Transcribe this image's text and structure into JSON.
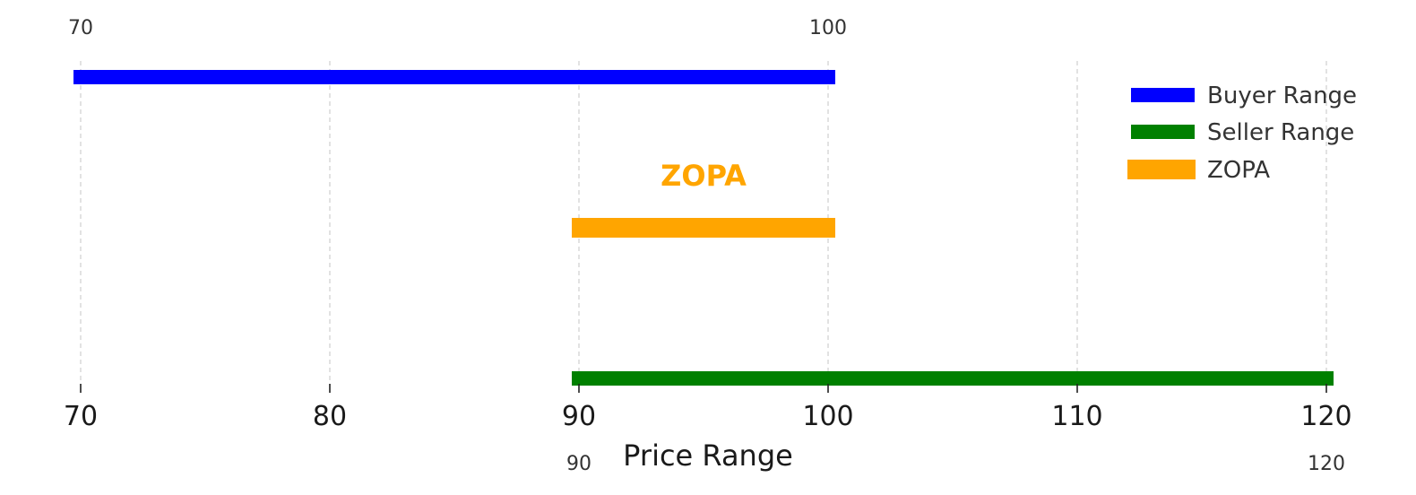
{
  "chart_data": {
    "type": "bar",
    "orientation": "horizontal-range",
    "title": "",
    "xlabel": "Price Range",
    "ylabel": "",
    "xlim": [
      70,
      120
    ],
    "x_ticks": [
      70,
      80,
      90,
      100,
      110,
      120
    ],
    "x_tick_labels": [
      "70",
      "80",
      "90",
      "100",
      "110",
      "120"
    ],
    "grid": "vertical dashed",
    "legend_position": "top-right",
    "series": [
      {
        "name": "Buyer Range",
        "start": 70,
        "end": 100,
        "color": "#0000ff",
        "row": "top"
      },
      {
        "name": "ZOPA",
        "start": 90,
        "end": 100,
        "color": "#ffa500",
        "row": "middle"
      },
      {
        "name": "Seller Range",
        "start": 90,
        "end": 120,
        "color": "#008000",
        "row": "bottom"
      }
    ],
    "legend": [
      {
        "label": "Buyer Range",
        "color": "#0000ff"
      },
      {
        "label": "Seller Range",
        "color": "#008000"
      },
      {
        "label": "ZOPA",
        "color": "#ffa500"
      }
    ],
    "annotations": [
      {
        "text": "ZOPA",
        "x": 95,
        "color": "#ffa500"
      },
      {
        "text": "70",
        "x": 70,
        "position": "above-buyer-start"
      },
      {
        "text": "100",
        "x": 100,
        "position": "above-buyer-end"
      },
      {
        "text": "90",
        "x": 90,
        "position": "below-seller-start"
      },
      {
        "text": "120",
        "x": 120,
        "position": "below-seller-end"
      }
    ]
  }
}
